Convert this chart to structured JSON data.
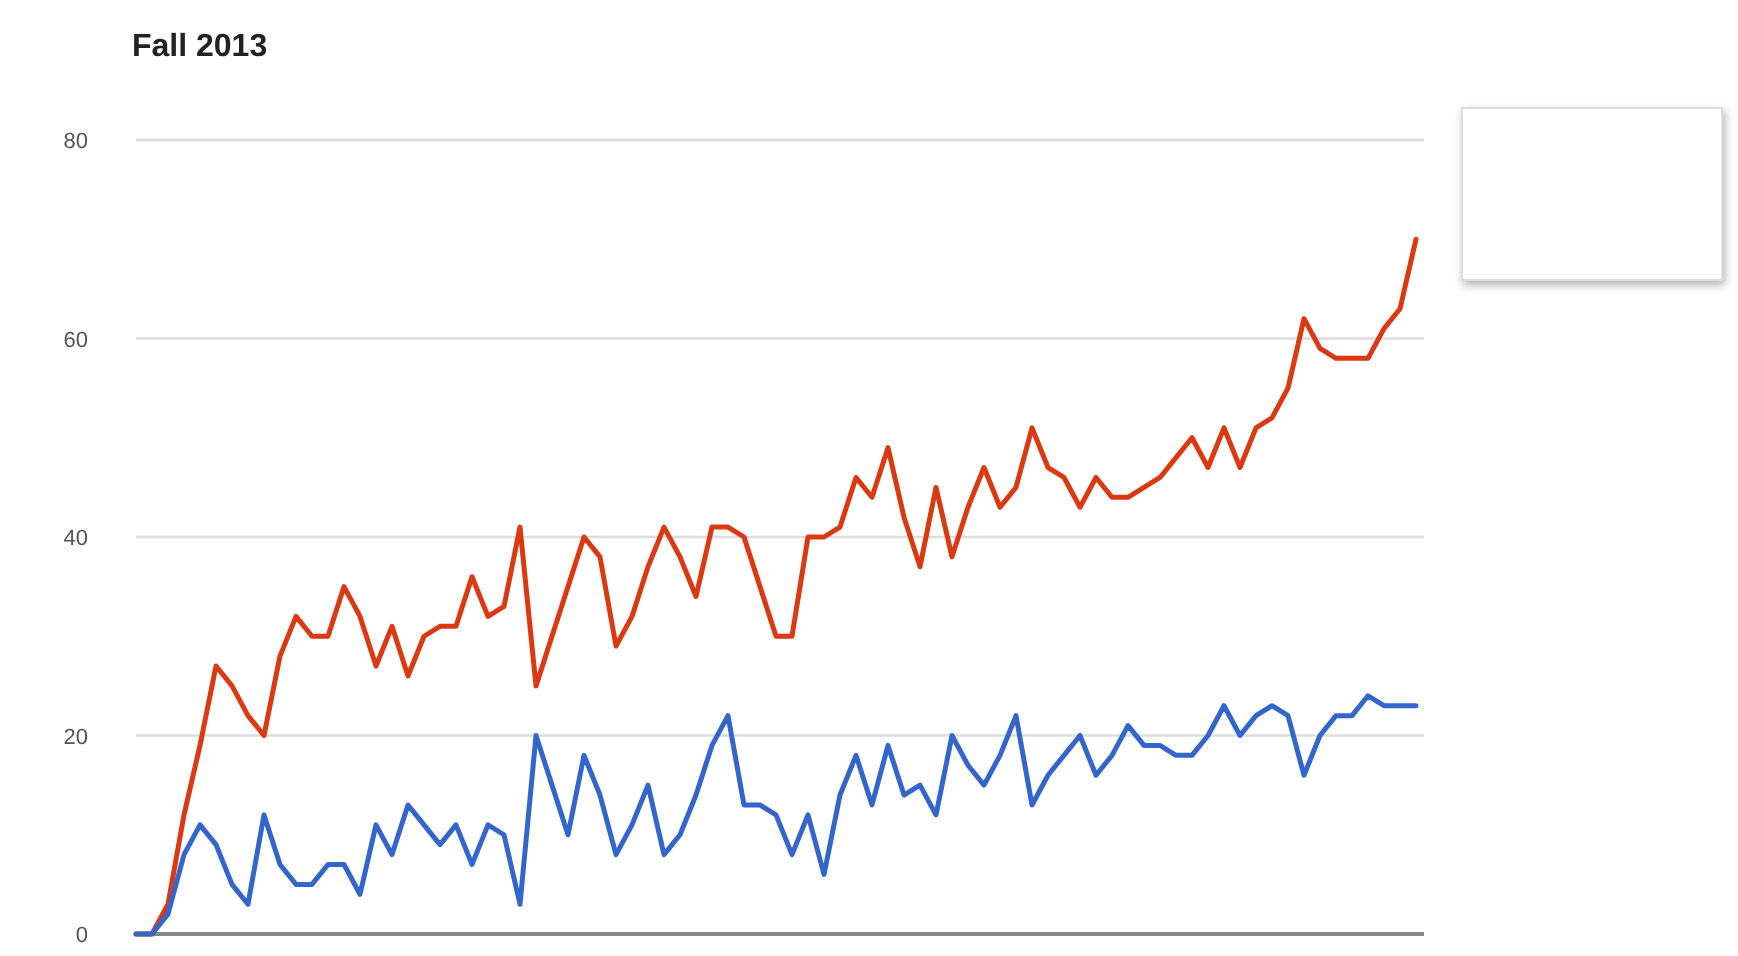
{
  "chart_data": {
    "type": "line",
    "title": "Fall 2013",
    "categories": [
      null,
      null,
      null,
      null,
      null,
      null,
      null,
      null,
      null,
      null,
      null,
      null,
      null,
      null,
      null,
      null,
      null,
      null,
      null,
      null,
      null,
      null,
      null,
      null,
      null,
      null,
      null,
      null,
      null,
      null,
      null,
      null,
      null,
      null,
      null,
      null,
      null,
      null,
      null,
      null,
      null,
      null,
      null,
      null,
      null,
      null,
      null,
      null,
      null,
      null,
      null,
      null,
      null,
      null,
      null,
      null,
      null,
      null,
      null,
      null,
      null,
      null,
      null,
      null,
      null,
      null,
      null,
      null,
      null,
      null,
      null,
      null,
      null,
      null,
      null,
      null,
      null,
      null,
      null,
      null,
      null
    ],
    "series": [
      {
        "color": "#dc3912",
        "values": [
          0,
          0,
          3,
          12,
          19,
          27,
          25,
          22,
          20,
          28,
          32,
          30,
          30,
          35,
          32,
          27,
          31,
          26,
          30,
          31,
          31,
          36,
          32,
          33,
          41,
          25,
          30,
          35,
          40,
          38,
          29,
          32,
          37,
          41,
          38,
          34,
          41,
          41,
          40,
          35,
          30,
          30,
          40,
          40,
          41,
          46,
          44,
          49,
          42,
          37,
          45,
          38,
          43,
          47,
          43,
          45,
          51,
          47,
          46,
          43,
          46,
          44,
          44,
          45,
          46,
          48,
          50,
          47,
          51,
          47,
          51,
          52,
          55,
          62,
          59,
          58,
          58,
          58,
          61,
          63,
          70
        ]
      },
      {
        "color": "#3366cc",
        "values": [
          0,
          0,
          2,
          8,
          11,
          9,
          5,
          3,
          12,
          7,
          5,
          5,
          7,
          7,
          4,
          11,
          8,
          13,
          11,
          9,
          11,
          7,
          11,
          10,
          3,
          20,
          15,
          10,
          18,
          14,
          8,
          11,
          15,
          8,
          10,
          14,
          19,
          22,
          13,
          13,
          12,
          8,
          12,
          6,
          14,
          18,
          13,
          19,
          14,
          15,
          12,
          20,
          17,
          15,
          18,
          22,
          13,
          16,
          18,
          20,
          16,
          18,
          21,
          19,
          19,
          18,
          18,
          20,
          23,
          20,
          22,
          23,
          22,
          16,
          20,
          22,
          22,
          24,
          23,
          23,
          23
        ]
      }
    ],
    "ylim": [
      0,
      80
    ],
    "yticks": [
      0,
      20,
      40,
      60,
      80
    ],
    "grid": "y"
  }
}
